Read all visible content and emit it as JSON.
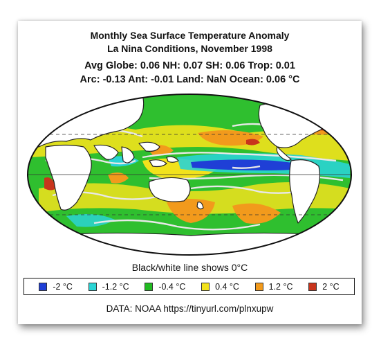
{
  "title": {
    "line1": "Monthly Sea Surface Temperature Anomaly",
    "line2": "La Nina Conditions, November 1998",
    "line3": "Avg Globe: 0.06  NH: 0.07  SH: 0.06  Trop: 0.01",
    "line4": "Arc: -0.13  Ant: -0.01  Land: NaN Ocean: 0.06 °C"
  },
  "caption": "Black/white line shows 0°C",
  "legend": [
    {
      "label": "-2 °C",
      "color": "#1f3fd6"
    },
    {
      "label": "-1.2 °C",
      "color": "#2ad4d4"
    },
    {
      "label": "-0.4 °C",
      "color": "#22bb22"
    },
    {
      "label": "0.4 °C",
      "color": "#f2e21c"
    },
    {
      "label": "1.2 °C",
      "color": "#f29a1c"
    },
    {
      "label": "2 °C",
      "color": "#c8341c"
    }
  ],
  "source": "DATA: NOAA https://tinyurl.com/plnxupw"
}
